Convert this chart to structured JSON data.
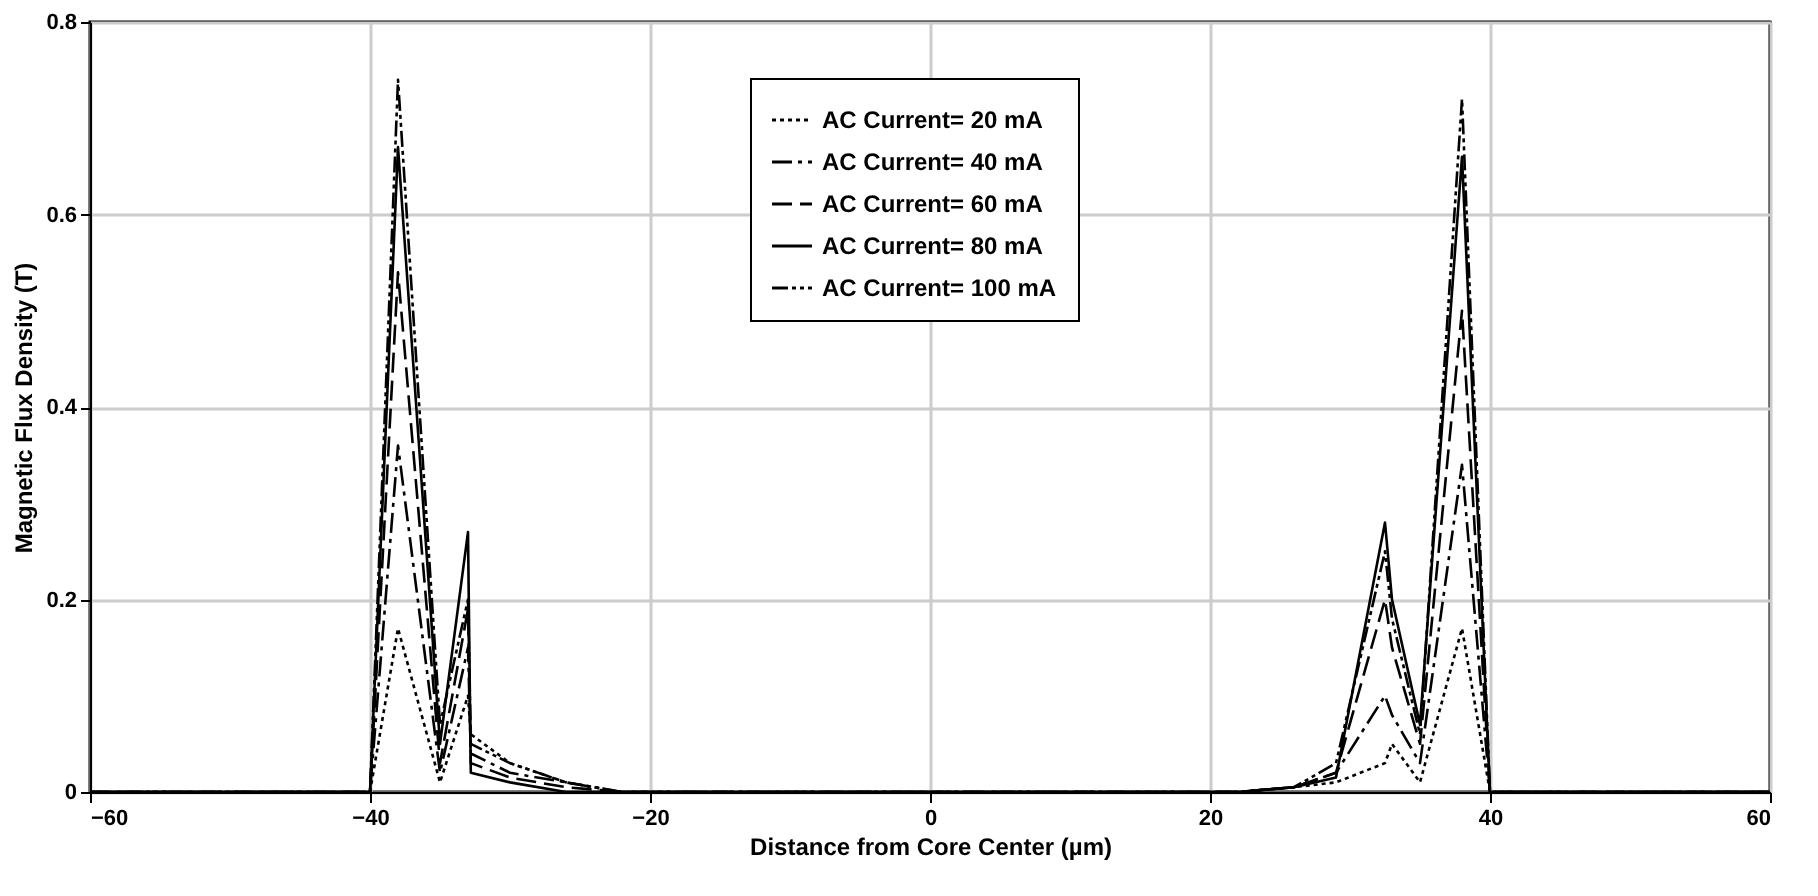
{
  "chart_data": {
    "type": "line",
    "xlabel": "Distance from Core Center (µm)",
    "ylabel": "Magnetic Flux Density (T)",
    "x": [
      -60,
      -40,
      -38,
      -35,
      -33,
      -32.8,
      -30,
      -26,
      -22,
      0,
      22,
      26,
      29,
      32.5,
      33,
      35,
      38,
      40,
      60
    ],
    "series": [
      {
        "name": "AC Current= 20 mA",
        "color": "#000000",
        "line_style": "dotted",
        "values": [
          0,
          0,
          0.17,
          0.01,
          0.1,
          0.06,
          0.03,
          0.01,
          0,
          0,
          0,
          0.005,
          0.01,
          0.03,
          0.05,
          0.01,
          0.17,
          0,
          0
        ]
      },
      {
        "name": "AC Current= 40 mA",
        "color": "#000000",
        "line_style": "dashdot",
        "values": [
          0,
          0,
          0.36,
          0.02,
          0.15,
          0.04,
          0.02,
          0.01,
          0,
          0,
          0,
          0.005,
          0.02,
          0.1,
          0.08,
          0.03,
          0.34,
          0,
          0
        ]
      },
      {
        "name": "AC Current= 60 mA",
        "color": "#000000",
        "line_style": "dashed",
        "values": [
          0,
          0,
          0.54,
          0.03,
          0.19,
          0.03,
          0.015,
          0.005,
          0,
          0,
          0,
          0.005,
          0.02,
          0.2,
          0.15,
          0.05,
          0.5,
          0,
          0
        ]
      },
      {
        "name": "AC Current= 80 mA",
        "color": "#000000",
        "line_style": "solid",
        "values": [
          0,
          0,
          0.67,
          0.05,
          0.27,
          0.02,
          0.01,
          0,
          0,
          0,
          0,
          0.005,
          0.015,
          0.28,
          0.2,
          0.07,
          0.66,
          0,
          0
        ]
      },
      {
        "name": "AC Current= 100 mA",
        "color": "#000000",
        "line_style": "dashdotdot",
        "values": [
          0,
          0,
          0.74,
          0.07,
          0.2,
          0.05,
          0.03,
          0.01,
          0,
          0,
          0,
          0.005,
          0.03,
          0.25,
          0.18,
          0.06,
          0.72,
          0,
          0
        ]
      }
    ],
    "xlim": [
      -60,
      60
    ],
    "xticks": [
      -60,
      -40,
      -20,
      0,
      20,
      40,
      60
    ],
    "ylim": [
      0,
      0.8
    ],
    "yticks": [
      0,
      0.2,
      0.4,
      0.6,
      0.8
    ],
    "grid": true,
    "legend": "top",
    "marker": "none"
  }
}
